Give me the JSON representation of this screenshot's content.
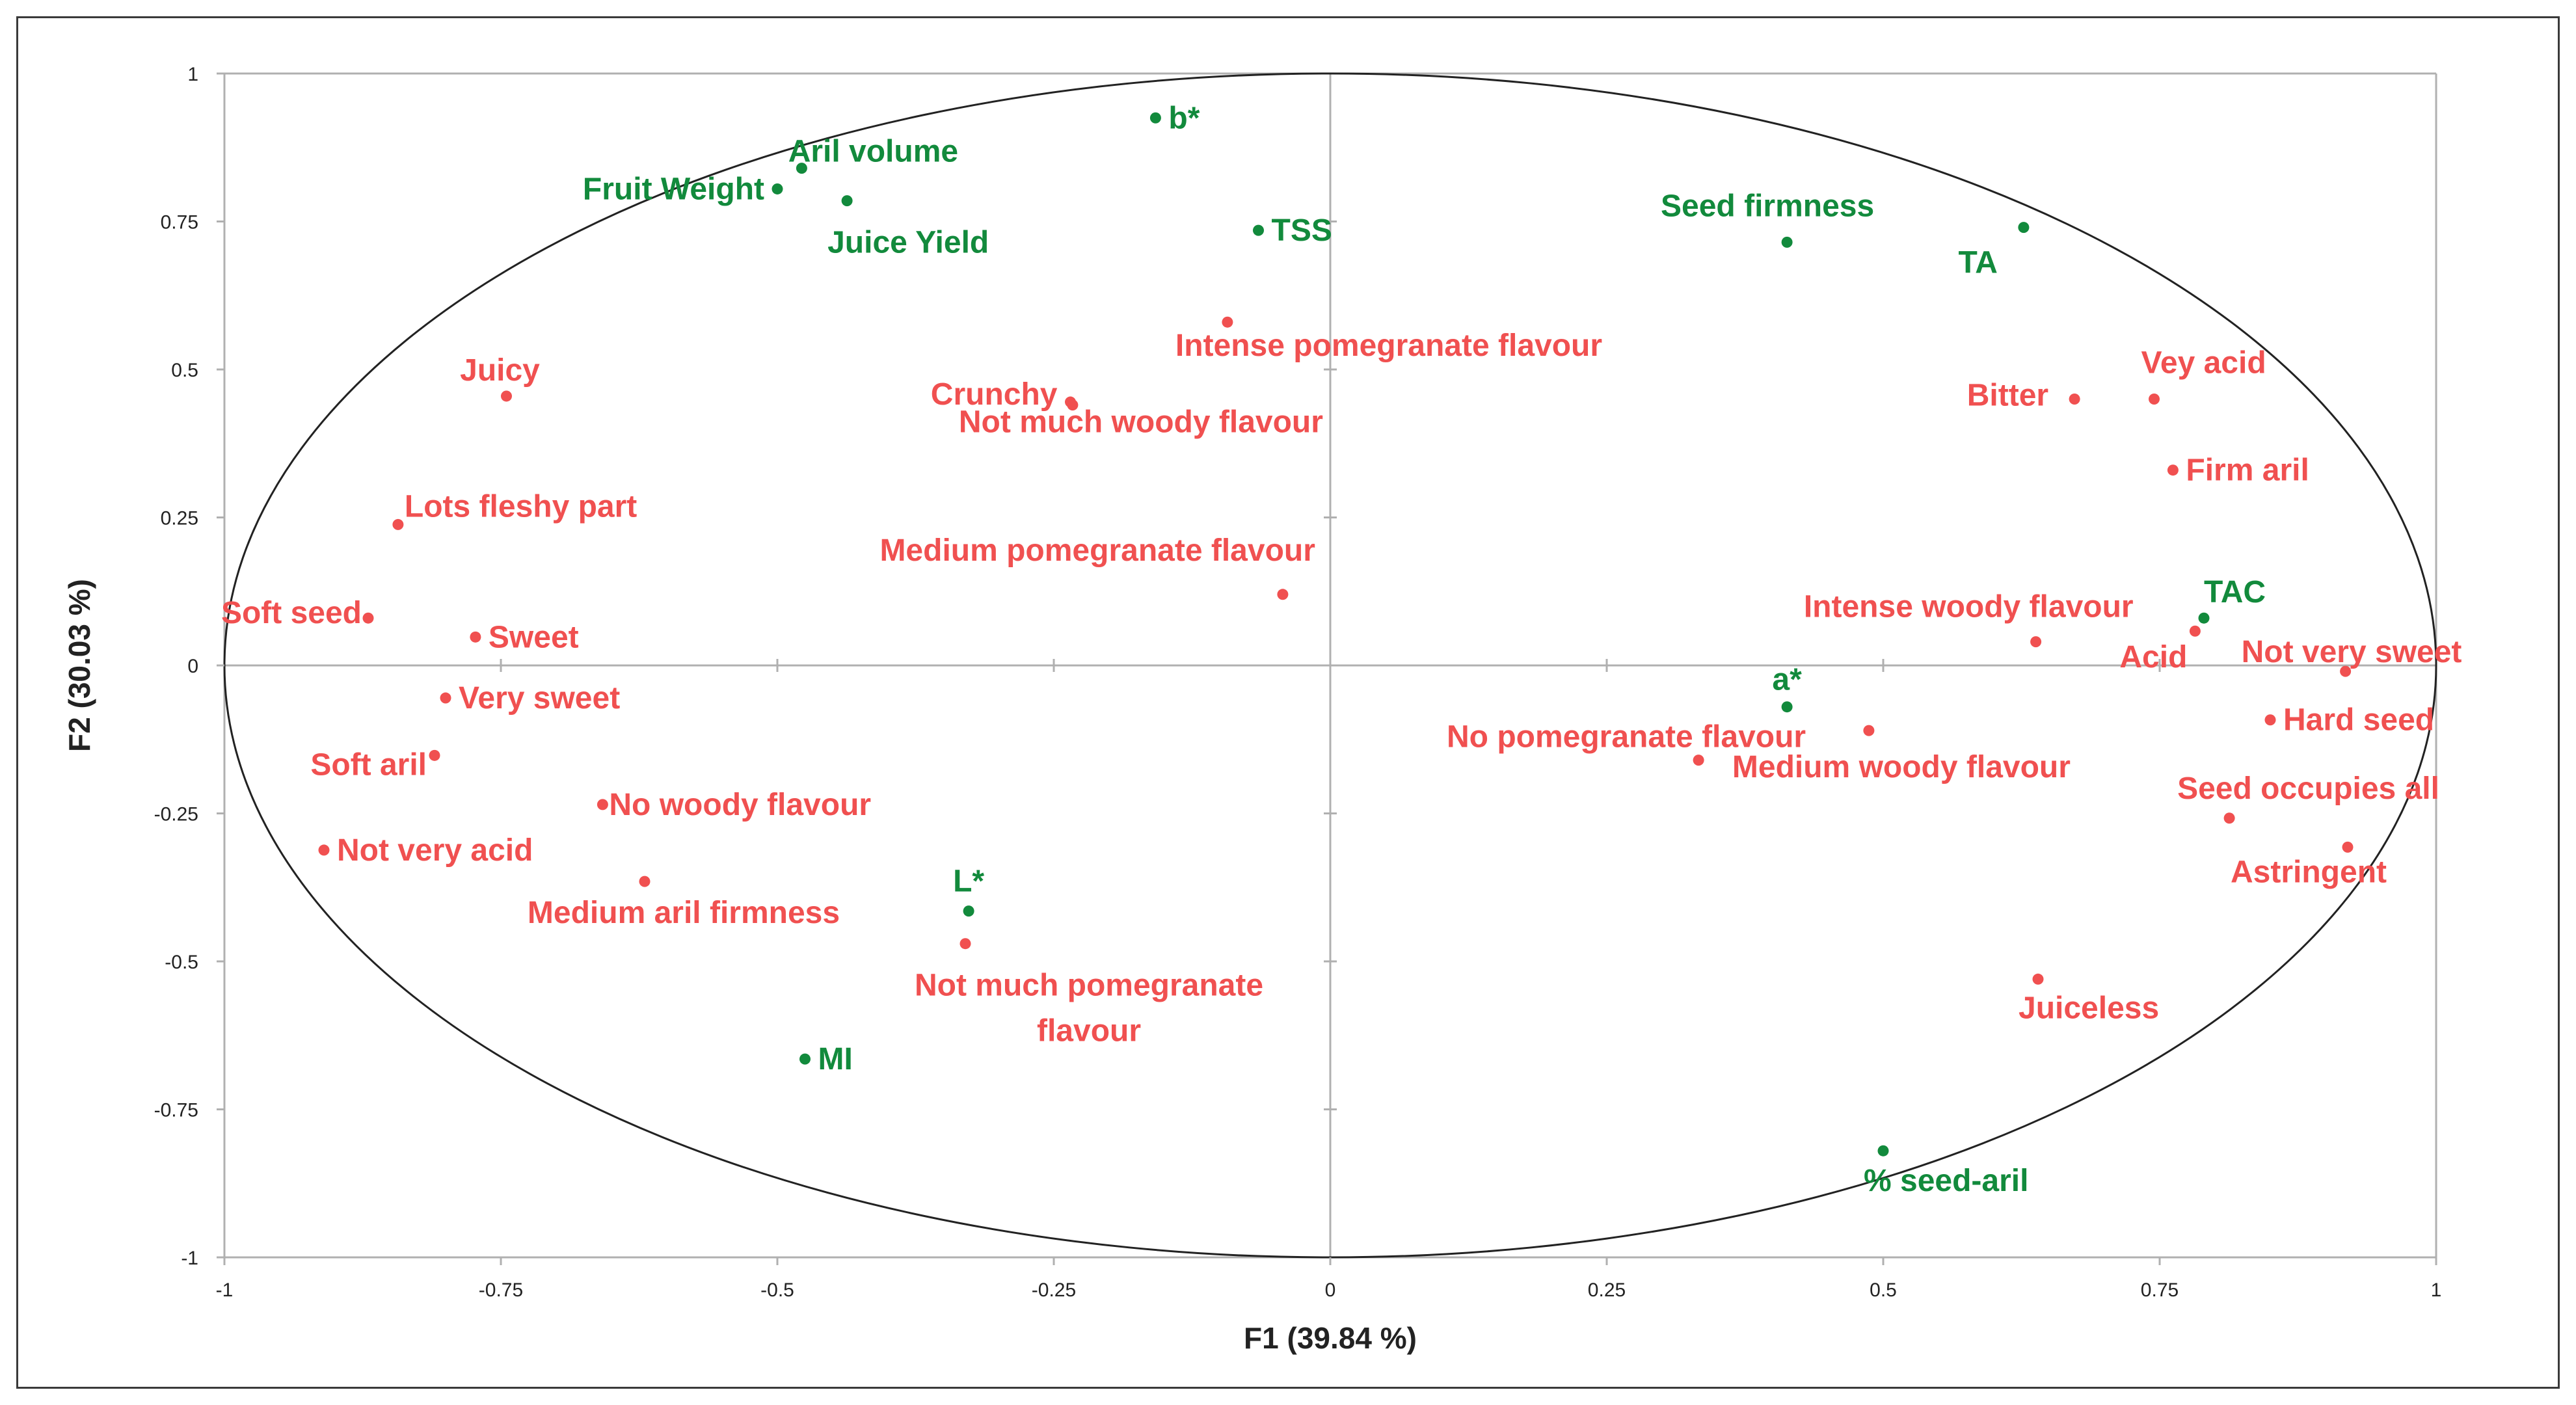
{
  "chart_data": {
    "type": "scatter",
    "xlabel": "F1 (39.84 %)",
    "ylabel": "F2 (30.03 %)",
    "xlim": [
      -1,
      1
    ],
    "ylim": [
      -1,
      1
    ],
    "x_ticks": [
      "-1",
      "-0.75",
      "-0.5",
      "-0.25",
      "0",
      "0.25",
      "0.5",
      "0.75",
      "1"
    ],
    "y_ticks": [
      "1",
      "0.75",
      "0.5",
      "0.25",
      "0",
      "-0.25",
      "-0.5",
      "-0.75",
      "-1"
    ],
    "grid": false,
    "unit_circle": true,
    "colors": {
      "sensory": "#f05050",
      "instrumental": "#128a3c",
      "axis": "#b0b0b0",
      "circle": "#222222"
    },
    "sensory_points": [
      {
        "label": "Juicy",
        "x": -0.745,
        "y": 0.455,
        "pos": "above-left"
      },
      {
        "label": "Lots fleshy part",
        "x": -0.843,
        "y": 0.238,
        "pos": "right"
      },
      {
        "label": "Soft seed",
        "x": -0.87,
        "y": 0.08,
        "pos": "left"
      },
      {
        "label": "Sweet",
        "x": -0.773,
        "y": 0.048,
        "pos": "right"
      },
      {
        "label": "Very sweet",
        "x": -0.8,
        "y": -0.055,
        "pos": "right"
      },
      {
        "label": "Soft aril",
        "x": -0.81,
        "y": -0.152,
        "pos": "left"
      },
      {
        "label": "Not very acid",
        "x": -0.91,
        "y": -0.312,
        "pos": "right"
      },
      {
        "label": "No woody flavour",
        "x": -0.658,
        "y": -0.235,
        "pos": "right"
      },
      {
        "label": "Medium aril firmness",
        "x": -0.62,
        "y": -0.365,
        "pos": "below"
      },
      {
        "label": "Not much pomegranate flavour",
        "x": -0.33,
        "y": -0.47,
        "pos": "below-wrap"
      },
      {
        "label": "Crunchy",
        "x": -0.235,
        "y": 0.445,
        "pos": "above-left"
      },
      {
        "label": "Not much woody flavour",
        "x": -0.233,
        "y": 0.44,
        "pos": "below-right"
      },
      {
        "label": "Intense pomegranate flavour",
        "x": -0.093,
        "y": 0.58,
        "pos": "below-right"
      },
      {
        "label": "Medium pomegranate flavour",
        "x": -0.043,
        "y": 0.12,
        "pos": "above-left"
      },
      {
        "label": "Bitter",
        "x": 0.673,
        "y": 0.45,
        "pos": "left"
      },
      {
        "label": "Vey acid",
        "x": 0.745,
        "y": 0.45,
        "pos": "above-right"
      },
      {
        "label": "Firm aril",
        "x": 0.762,
        "y": 0.33,
        "pos": "right"
      },
      {
        "label": "Intense woody flavour",
        "x": 0.638,
        "y": 0.04,
        "pos": "above-left"
      },
      {
        "label": "Acid",
        "x": 0.782,
        "y": 0.058,
        "pos": "left"
      },
      {
        "label": "Not very sweet",
        "x": 0.918,
        "y": -0.01,
        "pos": "above-right"
      },
      {
        "label": "Hard seed",
        "x": 0.85,
        "y": -0.092,
        "pos": "right"
      },
      {
        "label": "Seed occupies all",
        "x": 0.813,
        "y": -0.258,
        "pos": "above-right"
      },
      {
        "label": "Astringent",
        "x": 0.92,
        "y": -0.307,
        "pos": "below-right"
      },
      {
        "label": "No pomegranate flavour",
        "x": 0.333,
        "y": -0.16,
        "pos": "above-right"
      },
      {
        "label": "Medium woody flavour",
        "x": 0.487,
        "y": -0.11,
        "pos": "below-right"
      },
      {
        "label": "Juiceless",
        "x": 0.64,
        "y": -0.53,
        "pos": "below-right"
      }
    ],
    "instrumental_points": [
      {
        "label": "b*",
        "x": -0.158,
        "y": 0.925,
        "pos": "right"
      },
      {
        "label": "Aril volume",
        "x": -0.478,
        "y": 0.84,
        "pos": "above-left"
      },
      {
        "label": "Fruit Weight",
        "x": -0.5,
        "y": 0.805,
        "pos": "left"
      },
      {
        "label": "Juice Yield",
        "x": -0.437,
        "y": 0.785,
        "pos": "below-right"
      },
      {
        "label": "TSS",
        "x": -0.065,
        "y": 0.735,
        "pos": "right"
      },
      {
        "label": "Seed firmness",
        "x": 0.413,
        "y": 0.715,
        "pos": "above-left"
      },
      {
        "label": "TA",
        "x": 0.627,
        "y": 0.74,
        "pos": "below-left"
      },
      {
        "label": "TAC",
        "x": 0.79,
        "y": 0.08,
        "pos": "above-right"
      },
      {
        "label": "a*",
        "x": 0.413,
        "y": -0.07,
        "pos": "above"
      },
      {
        "label": "L*",
        "x": -0.327,
        "y": -0.415,
        "pos": "above"
      },
      {
        "label": "MI",
        "x": -0.475,
        "y": -0.665,
        "pos": "right"
      },
      {
        "label": "% seed-aril",
        "x": 0.5,
        "y": -0.82,
        "pos": "below-right"
      }
    ]
  }
}
